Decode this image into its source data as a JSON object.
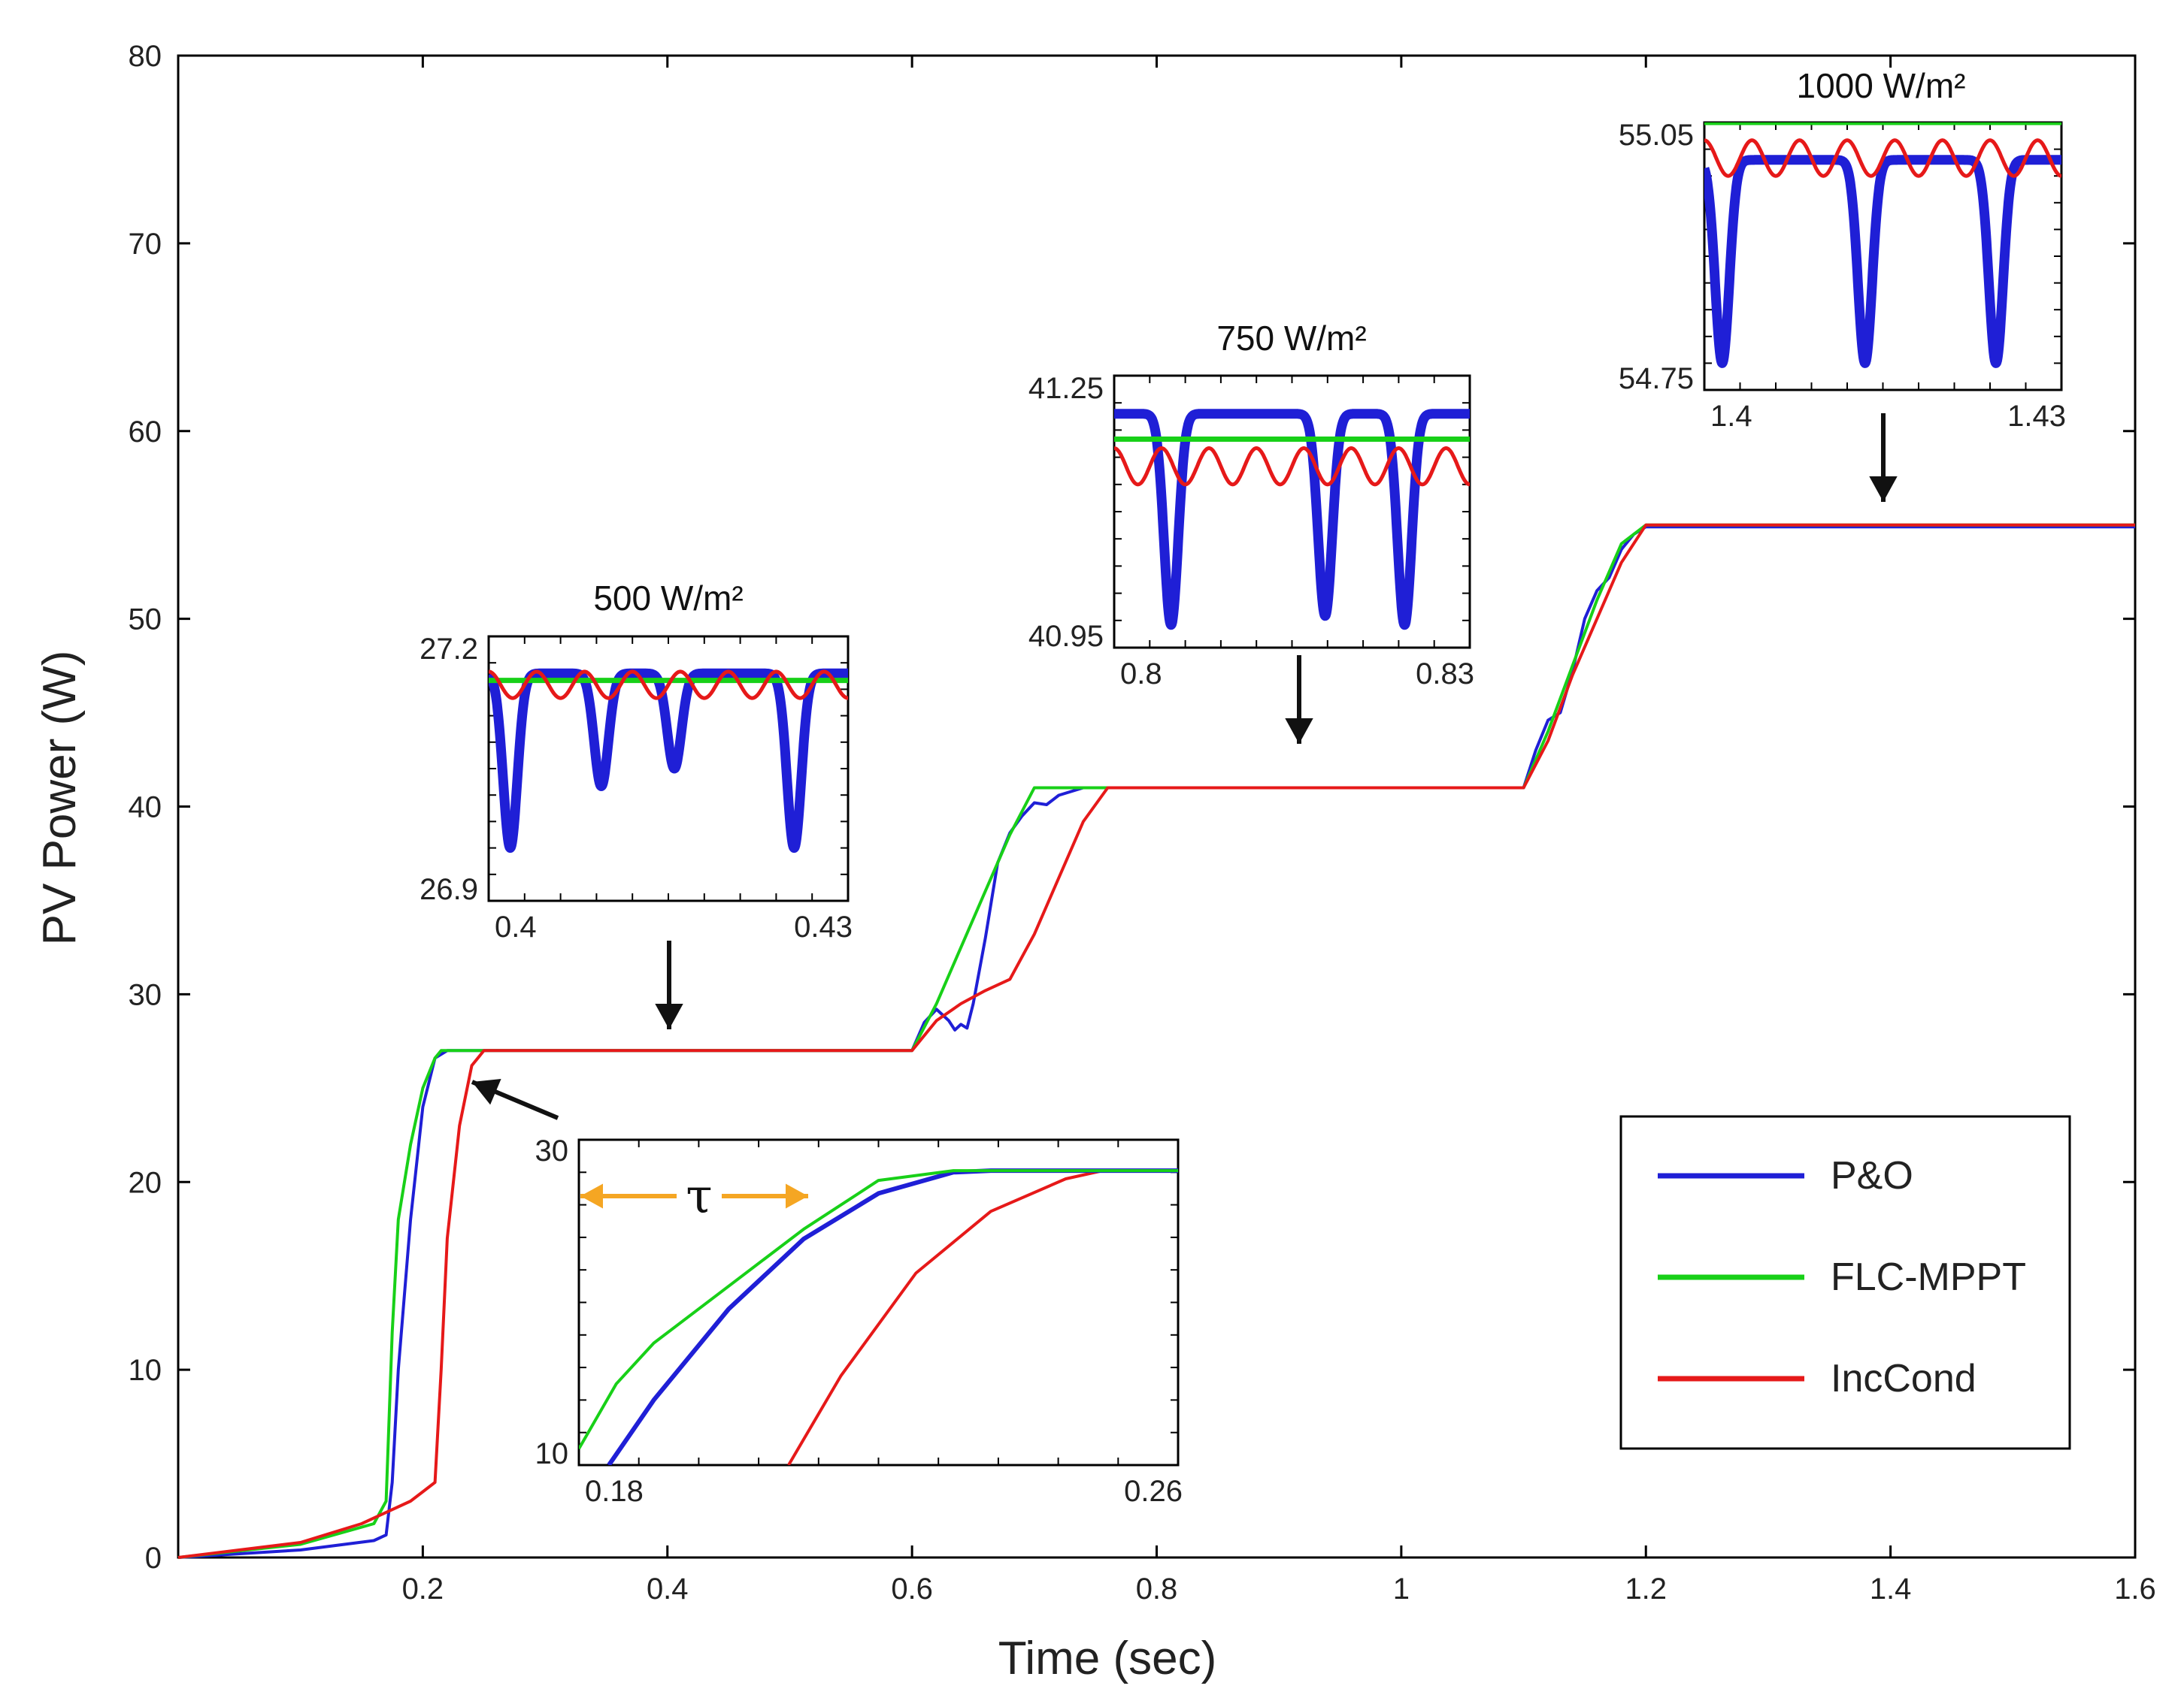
{
  "chart_data": {
    "type": "line",
    "xlabel": "Time (sec)",
    "ylabel": "PV Power  (W)",
    "xlim": [
      0,
      1.6
    ],
    "ylim": [
      0,
      80
    ],
    "xticks": [
      "0.2",
      "0.4",
      "0.6",
      "0.8",
      "1",
      "1.2",
      "1.4",
      "1.6"
    ],
    "yticks": [
      "0",
      "10",
      "20",
      "30",
      "40",
      "50",
      "60",
      "70",
      "80"
    ],
    "legend_position": "bottom-right",
    "series": [
      {
        "name": "P&O",
        "color": "#1f1fd6",
        "x": [
          0,
          0.1,
          0.16,
          0.17,
          0.175,
          0.18,
          0.19,
          0.2,
          0.21,
          0.22,
          0.23,
          0.6,
          0.61,
          0.62,
          0.63,
          0.635,
          0.64,
          0.645,
          0.65,
          0.66,
          0.67,
          0.68,
          0.69,
          0.7,
          0.71,
          0.72,
          0.73,
          0.74,
          0.75,
          1.1,
          1.11,
          1.12,
          1.13,
          1.14,
          1.15,
          1.16,
          1.17,
          1.18,
          1.19,
          1.2,
          1.6
        ],
        "y": [
          0,
          0.4,
          0.9,
          1.2,
          4,
          10,
          18,
          24,
          26.6,
          27,
          27,
          27,
          28.5,
          29.2,
          28.6,
          28.1,
          28.4,
          28.2,
          29.5,
          33,
          37,
          38.6,
          39.5,
          40.2,
          40.1,
          40.6,
          40.8,
          41,
          41,
          41,
          43,
          44.6,
          45,
          47.2,
          50,
          51.5,
          52.2,
          53.7,
          54.5,
          54.9,
          54.9
        ]
      },
      {
        "name": "FLC-MPPT",
        "color": "#18d018",
        "x": [
          0,
          0.1,
          0.16,
          0.17,
          0.175,
          0.18,
          0.19,
          0.2,
          0.21,
          0.215,
          0.6,
          0.62,
          0.64,
          0.66,
          0.68,
          0.7,
          0.71,
          1.1,
          1.12,
          1.14,
          1.16,
          1.18,
          1.2,
          1.6
        ],
        "y": [
          0,
          0.7,
          1.8,
          3,
          12,
          18,
          22,
          25,
          26.6,
          27,
          27,
          29.5,
          32.5,
          35.5,
          38.5,
          41,
          41,
          41,
          44,
          47.5,
          51,
          54,
          55,
          55
        ]
      },
      {
        "name": "IncCond",
        "color": "#e61919",
        "x": [
          0,
          0.1,
          0.15,
          0.19,
          0.2,
          0.21,
          0.215,
          0.22,
          0.23,
          0.24,
          0.25,
          0.6,
          0.62,
          0.64,
          0.66,
          0.68,
          0.7,
          0.72,
          0.74,
          0.76,
          1.1,
          1.12,
          1.14,
          1.16,
          1.18,
          1.2,
          1.6
        ],
        "y": [
          0,
          0.8,
          1.8,
          3,
          3.5,
          4,
          10,
          17,
          23,
          26.2,
          27,
          27,
          28.6,
          29.5,
          30.2,
          30.8,
          33.2,
          36.2,
          39.2,
          41,
          41,
          43.5,
          47,
          50,
          53,
          55,
          55
        ]
      }
    ],
    "insets": [
      {
        "title": "500 W/m²",
        "xlim": [
          0.4,
          0.43
        ],
        "ylim": [
          26.9,
          27.2
        ],
        "xticks": [
          "0.4",
          "0.43"
        ],
        "yticks": [
          "26.9",
          "27.2"
        ],
        "pointer_x": 0.4,
        "pointer_y": 27,
        "series": {
          "P&O": {
            "mean": 27.07,
            "amplitude": 0.06,
            "dips": [
              {
                "x": 0.4018,
                "y": 26.96
              },
              {
                "x": 0.4094,
                "y": 27.03
              },
              {
                "x": 0.4155,
                "y": 27.05
              },
              {
                "x": 0.4255,
                "y": 26.96
              }
            ]
          },
          "FLC-MPPT": {
            "level": 27.15
          },
          "IncCond": {
            "level": 27.16,
            "amplitude": 0.015
          }
        }
      },
      {
        "title": "750 W/m²",
        "xlim": [
          0.8,
          0.83
        ],
        "ylim": [
          40.95,
          41.25
        ],
        "xticks": [
          "0.8",
          "0.83"
        ],
        "yticks": [
          "40.95",
          "41.25"
        ],
        "pointer_x": 0.9,
        "pointer_y": 41,
        "series": {
          "P&O": {
            "dips": [
              {
                "x": 0.8048,
                "y": 40.975
              },
              {
                "x": 0.8178,
                "y": 40.985
              },
              {
                "x": 0.8245,
                "y": 40.975
              }
            ]
          },
          "FLC-MPPT": {
            "level": 41.18
          },
          "IncCond": {
            "level": 41.17,
            "amplitude": 0.02
          }
        }
      },
      {
        "title": "1000 W/m²",
        "xlim": [
          1.4,
          1.43
        ],
        "ylim": [
          54.75,
          55.05
        ],
        "xticks": [
          "1.4",
          "1.43"
        ],
        "yticks": [
          "54.75",
          "55.05"
        ],
        "pointer_x": 1.4,
        "pointer_y": 55,
        "series": {
          "P&O": {
            "dips": [
              {
                "x": 1.4015,
                "y": 54.78
              },
              {
                "x": 1.4135,
                "y": 54.78
              },
              {
                "x": 1.4245,
                "y": 54.78
              }
            ]
          },
          "FLC-MPPT": {
            "level": 55.05
          },
          "IncCond": {
            "level": 55.03,
            "amplitude": 0.02
          }
        }
      },
      {
        "title": "",
        "xlim": [
          0.18,
          0.26
        ],
        "ylim": [
          10,
          30
        ],
        "xticks": [
          "0.18",
          "0.26"
        ],
        "yticks": [
          "30",
          "10"
        ],
        "pointer_x": 0.25,
        "pointer_y": 27,
        "annotation": "τ",
        "series": {
          "P&O": {
            "x": [
              0.184,
              0.19,
              0.2,
              0.21,
              0.22,
              0.23,
              0.235,
              0.26
            ],
            "y": [
              10,
              14,
              19.6,
              23.9,
              26.7,
              28,
              28.1,
              28.1
            ]
          },
          "FLC-MPPT": {
            "x": [
              0.18,
              0.185,
              0.19,
              0.2,
              0.21,
              0.22,
              0.23,
              0.235,
              0.26
            ],
            "y": [
              11,
              15,
              17.5,
              21,
              24.5,
              27.5,
              28.1,
              28.1,
              28.1
            ]
          },
          "IncCond": {
            "x": [
              0.208,
              0.215,
              0.225,
              0.235,
              0.245,
              0.25,
              0.26
            ],
            "y": [
              10,
              15.5,
              21.8,
              25.6,
              27.6,
              28.1,
              28.1
            ]
          }
        }
      }
    ]
  }
}
